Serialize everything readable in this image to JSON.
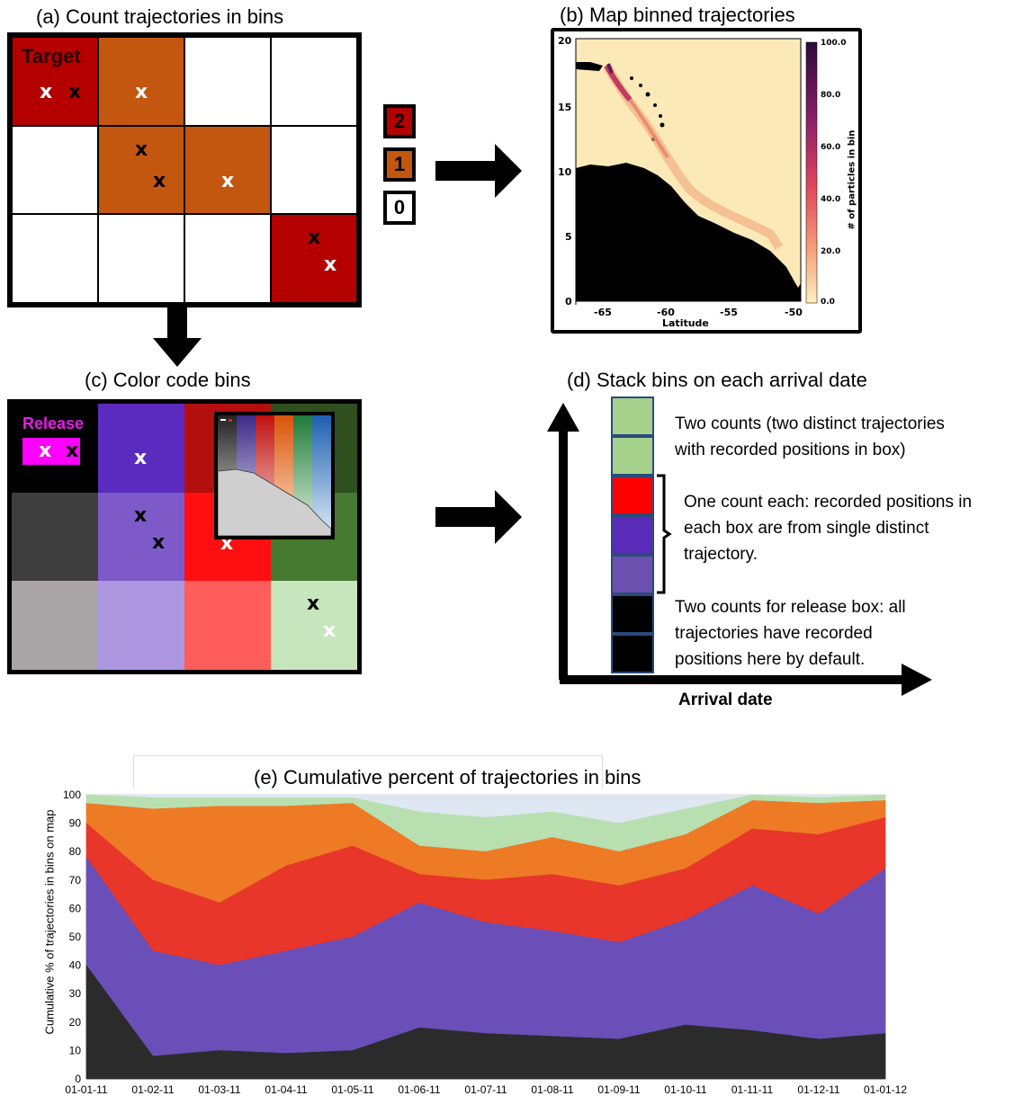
{
  "panel_a": {
    "title": "(a) Count trajectories in bins",
    "target_label": "Target",
    "marker": "x",
    "colors": {
      "two": "#b50000",
      "one": "#c4570f",
      "zero": "#ffffff"
    },
    "legend": [
      "2",
      "1",
      "0"
    ]
  },
  "panel_b": {
    "title": "(b) Map binned trajectories",
    "xlabel": "Latitude",
    "colorbar_label": "# of particles in bin",
    "yticks": [
      "20",
      "15",
      "10",
      "5",
      "0"
    ],
    "xticks": [
      "-65",
      "-60",
      "-55",
      "-50"
    ],
    "cbar_ticks": [
      "100.0",
      "80.0",
      "60.0",
      "40.0",
      "20.0",
      "0.0"
    ]
  },
  "panel_c": {
    "title": "(c) Color code bins",
    "release_label": "Release",
    "marker": "x"
  },
  "panel_d": {
    "title": "(d) Stack bins on each arrival date",
    "xlabel": "Arrival date",
    "text_top": [
      "Two counts (two distinct trajectories",
      "with recorded positions in box)"
    ],
    "text_mid": [
      "One count each: recorded positions in",
      "each box are from single distinct",
      "trajectory."
    ],
    "text_bot": [
      "Two counts for release box: all",
      "trajectories have recorded",
      "positions here by default."
    ]
  },
  "panel_e": {
    "title": "(e) Cumulative percent of trajectories in bins",
    "chart_data": {
      "type": "area",
      "title": "(e) Cumulative percent of trajectories in bins",
      "ylabel": "Cumulative % of trajectories in bins on map",
      "xlabel": "",
      "ylim": [
        0,
        100
      ],
      "yticks": [
        0,
        10,
        20,
        30,
        40,
        50,
        60,
        70,
        80,
        90,
        100
      ],
      "x": [
        "01-01-11",
        "01-02-11",
        "01-03-11",
        "01-04-11",
        "01-05-11",
        "01-06-11",
        "01-07-11",
        "01-08-11",
        "01-09-11",
        "01-10-11",
        "01-11-11",
        "01-12-11",
        "01-01-12"
      ],
      "series": [
        {
          "color": "#2b2b2b",
          "values": [
            40,
            8,
            10,
            9,
            10,
            18,
            16,
            15,
            14,
            19,
            17,
            14,
            16
          ]
        },
        {
          "color": "#6a4fb8",
          "values": [
            78,
            45,
            40,
            45,
            50,
            62,
            55,
            52,
            48,
            56,
            68,
            58,
            74
          ]
        },
        {
          "color": "#e8362a",
          "values": [
            90,
            70,
            62,
            75,
            82,
            72,
            70,
            72,
            68,
            74,
            88,
            86,
            92
          ]
        },
        {
          "color": "#ee7a26",
          "values": [
            97,
            95,
            96,
            96,
            97,
            82,
            80,
            85,
            80,
            86,
            98,
            97,
            98
          ]
        },
        {
          "color": "#b8dfb0",
          "values": [
            100,
            99,
            99,
            99,
            99,
            94,
            92,
            94,
            90,
            95,
            100,
            99,
            100
          ]
        },
        {
          "color": "#dfe7f2",
          "values": [
            100,
            100,
            100,
            100,
            100,
            100,
            100,
            100,
            100,
            100,
            100,
            100,
            100
          ]
        }
      ]
    }
  }
}
